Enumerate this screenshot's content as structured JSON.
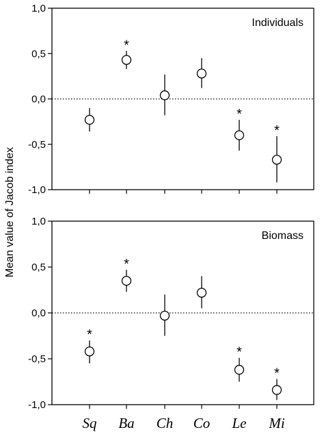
{
  "figure": {
    "ylabel": "Mean value of Jacob index"
  },
  "chart_data": [
    {
      "type": "scatter",
      "panel_label": "Individuals",
      "categories": [
        "Sq",
        "Ba",
        "Ch",
        "Co",
        "Le",
        "Mi"
      ],
      "values": [
        -0.23,
        0.43,
        0.04,
        0.28,
        -0.4,
        -0.67
      ],
      "error_low": [
        -0.36,
        0.33,
        -0.18,
        0.12,
        -0.57,
        -0.92
      ],
      "error_high": [
        -0.1,
        0.53,
        0.27,
        0.45,
        -0.23,
        -0.41
      ],
      "significant": [
        false,
        true,
        false,
        false,
        true,
        true
      ],
      "significance_marker": "*",
      "reference_line": 0.0,
      "ylim": [
        -1.0,
        1.0
      ],
      "yticks": [
        -1.0,
        -0.5,
        0.0,
        0.5,
        1.0
      ],
      "ytick_labels": [
        "-1,0",
        "-0,5",
        "0,0",
        "0,5",
        "1,0"
      ],
      "grid": false
    },
    {
      "type": "scatter",
      "panel_label": "Biomass",
      "categories": [
        "Sq",
        "Ba",
        "Ch",
        "Co",
        "Le",
        "Mi"
      ],
      "values": [
        -0.42,
        0.35,
        -0.03,
        0.22,
        -0.62,
        -0.84
      ],
      "error_low": [
        -0.55,
        0.23,
        -0.25,
        0.05,
        -0.75,
        -0.95
      ],
      "error_high": [
        -0.3,
        0.47,
        0.2,
        0.4,
        -0.49,
        -0.72
      ],
      "significant": [
        true,
        true,
        false,
        false,
        true,
        true
      ],
      "significance_marker": "*",
      "reference_line": 0.0,
      "ylim": [
        -1.0,
        1.0
      ],
      "yticks": [
        -1.0,
        -0.5,
        0.0,
        0.5,
        1.0
      ],
      "ytick_labels": [
        "-1,0",
        "-0,5",
        "0,0",
        "0,5",
        "1,0"
      ],
      "grid": false
    }
  ]
}
